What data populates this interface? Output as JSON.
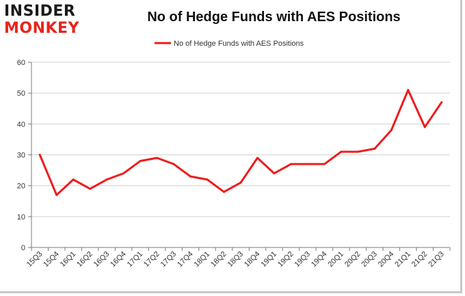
{
  "logo": {
    "line1": "INSIDER",
    "line2": "MONKEY"
  },
  "colors": {
    "series": "#ee1c1c",
    "grid": "#d0d0d0",
    "axis": "#7a7a7a",
    "logo_dark": "#1a1a1a",
    "logo_red": "#e8241c"
  },
  "chart_data": {
    "type": "line",
    "title": "No of Hedge Funds with AES Positions",
    "xlabel": "",
    "ylabel": "",
    "ylim": [
      0,
      60
    ],
    "yticks": [
      0,
      10,
      20,
      30,
      40,
      50,
      60
    ],
    "grid": "horizontal",
    "legend": "top-center",
    "categories": [
      "15Q3",
      "15Q4",
      "16Q1",
      "16Q2",
      "16Q3",
      "16Q4",
      "17Q1",
      "17Q2",
      "17Q3",
      "17Q4",
      "18Q1",
      "18Q2",
      "18Q3",
      "18Q4",
      "19Q1",
      "19Q2",
      "19Q3",
      "19Q4",
      "20Q1",
      "20Q2",
      "20Q3",
      "20Q4",
      "21Q1",
      "21Q2",
      "21Q3"
    ],
    "series": [
      {
        "name": "No of Hedge Funds with AES Positions",
        "values": [
          30,
          17,
          22,
          19,
          22,
          24,
          28,
          29,
          27,
          23,
          22,
          18,
          21,
          29,
          24,
          27,
          27,
          27,
          31,
          31,
          32,
          38,
          51,
          39,
          47
        ]
      }
    ]
  }
}
